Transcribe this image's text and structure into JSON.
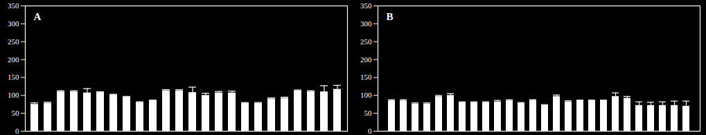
{
  "chart_data": [
    {
      "type": "bar",
      "title": "A",
      "categories": [
        null,
        null,
        null,
        null,
        null,
        null,
        null,
        null,
        null,
        null,
        null,
        null,
        null,
        null,
        null,
        null,
        null,
        null,
        null,
        null,
        null,
        null,
        null,
        null
      ],
      "values": [
        75,
        78,
        110,
        110,
        107,
        108,
        101,
        95,
        80,
        85,
        113,
        113,
        108,
        100,
        107,
        107,
        78,
        78,
        90,
        92,
        113,
        110,
        110,
        117
      ],
      "errors": [
        4,
        3,
        3,
        3,
        12,
        2,
        2,
        2,
        2,
        2,
        3,
        3,
        15,
        6,
        4,
        5,
        2,
        2,
        3,
        3,
        2,
        3,
        17,
        11
      ],
      "color": "#ffffff",
      "ylim": [
        0,
        350
      ],
      "yticks": [
        0,
        50,
        100,
        150,
        200,
        250,
        300,
        350
      ],
      "tick_labels": "y"
    },
    {
      "type": "bar",
      "title": "B",
      "categories": [
        null,
        null,
        null,
        null,
        null,
        null,
        null,
        null,
        null,
        null,
        null,
        null,
        null,
        null,
        null,
        null,
        null,
        null,
        null,
        null,
        null,
        null,
        null,
        null,
        null,
        null
      ],
      "values": [
        85,
        85,
        76,
        76,
        97,
        100,
        80,
        80,
        80,
        82,
        85,
        78,
        86,
        72,
        97,
        82,
        85,
        85,
        85,
        97,
        92,
        72,
        72,
        72,
        72,
        70
      ],
      "errors": [
        3,
        3,
        3,
        3,
        3,
        5,
        2,
        2,
        2,
        4,
        3,
        2,
        2,
        2,
        4,
        3,
        2,
        2,
        2,
        10,
        5,
        10,
        9,
        10,
        12,
        14
      ],
      "color": "#ffffff",
      "ylim": [
        0,
        350
      ],
      "yticks": [
        0,
        50,
        100,
        150,
        200,
        250,
        300,
        350
      ],
      "tick_labels": "y"
    }
  ]
}
